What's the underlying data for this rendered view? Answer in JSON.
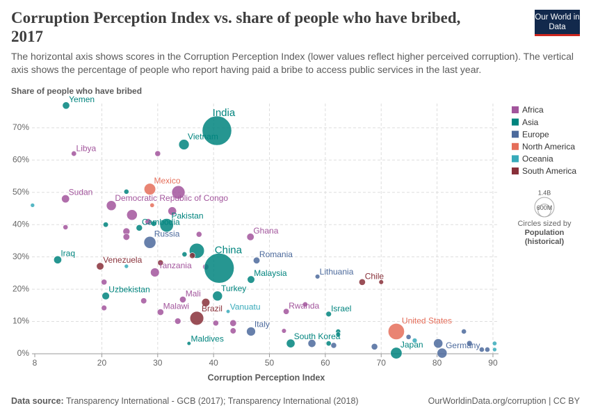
{
  "chart_data": {
    "type": "scatter",
    "title": "Corruption Perception Index vs. share of people who have bribed, 2017",
    "subtitle": "The horizontal axis shows scores in the Corruption Perception Index (lower values reflect higher perceived corruption). The vertical axis shows the percentage of people who report having paid a bribe to access public services in the last year.",
    "logo": "Our World in Data",
    "y_label": "Share of people who have bribed",
    "x_label": "Corruption Perception Index",
    "source_label": "Data source:",
    "source": "Transparency International - GCB (2017); Transparency International (2018)",
    "url": "OurWorldinData.org/corruption | CC BY",
    "xlim": [
      7.5,
      91
    ],
    "ylim": [
      0,
      77.5
    ],
    "xticks": [
      8,
      20,
      30,
      40,
      50,
      60,
      70,
      80,
      90
    ],
    "yticks": [
      {
        "value": 0,
        "label": "0%"
      },
      {
        "value": 10,
        "label": "10%"
      },
      {
        "value": 20,
        "label": "20%"
      },
      {
        "value": 30,
        "label": "30%"
      },
      {
        "value": 40,
        "label": "40%"
      },
      {
        "value": 50,
        "label": "50%"
      },
      {
        "value": 60,
        "label": "60%"
      },
      {
        "value": 70,
        "label": "70%"
      }
    ],
    "grid": true,
    "size_title": "Circles sized by",
    "size_variable": "Population",
    "size_note": "(historical)",
    "size_legend": [
      {
        "value": 1400,
        "label": "1.4B"
      },
      {
        "value": 600,
        "label": "600M"
      }
    ],
    "series": [
      {
        "name": "Africa",
        "color": "#a2559c",
        "x": [
          15,
          13.5,
          21.7,
          46.6,
          29.5,
          34.5,
          30.5,
          53,
          33.7,
          32.6,
          25.4,
          24.4,
          24.4,
          30.0,
          13.5,
          20.4,
          20.4,
          27.5,
          28.3,
          37.4,
          38.6,
          43.5,
          43.5,
          40.4,
          33.6,
          52.6,
          56.4
        ],
        "values": [
          62,
          48,
          45.9,
          36.2,
          25.2,
          16.8,
          12.9,
          13.1,
          50,
          44.2,
          43,
          37.9,
          36.2,
          62,
          39.2,
          22.2,
          14.2,
          16.4,
          40.9,
          37,
          26.9,
          9.5,
          7.1,
          9.5,
          10.1,
          7.1,
          15.3
        ],
        "sizes": [
          6,
          40,
          81,
          29,
          57,
          18,
          18,
          12,
          190,
          50,
          100,
          25,
          20,
          10,
          5,
          10,
          8,
          12,
          15,
          10,
          14,
          20,
          12,
          10,
          15,
          3,
          5
        ],
        "labels": [
          "Libya",
          "Sudan",
          "Democratic Republic of Congo",
          "Ghana",
          "Tanzania",
          "Mali",
          "Malawi",
          "Rwanda",
          null,
          null,
          null,
          null,
          null,
          null,
          null,
          null,
          null,
          null,
          null,
          null,
          null,
          null,
          null,
          null,
          null,
          null,
          null
        ]
      },
      {
        "name": "Asia",
        "color": "#00847e",
        "x": [
          13.6,
          40.6,
          34.7,
          31.6,
          26.7,
          41,
          12.1,
          20.7,
          40.7,
          46.7,
          60.6,
          53.8,
          72.7,
          35.6,
          37,
          24.4,
          20.7,
          29.3,
          34.8,
          62.3,
          62.3,
          60.6
        ],
        "values": [
          76.9,
          69.1,
          64.8,
          39.8,
          39,
          26.5,
          29.1,
          17.9,
          17.9,
          23,
          12.3,
          3.2,
          0.2,
          3.2,
          31.9,
          50.2,
          40,
          40.3,
          30.8,
          6.9,
          6,
          3.2
        ],
        "sizes": [
          28,
          1340,
          95,
          200,
          16,
          1390,
          38,
          32,
          80,
          31,
          8,
          51,
          127,
          0.4,
          264,
          5,
          6,
          7,
          5,
          4,
          3,
          5
        ],
        "labels": [
          "Yemen",
          "India",
          "Vietnam",
          "Pakistan",
          "Cambodia",
          "China",
          "Iraq",
          "Uzbekistan",
          "Turkey",
          "Malaysia",
          "Israel",
          "South Korea",
          "Japan",
          "Maldives",
          null,
          null,
          null,
          null,
          null,
          null,
          null,
          null
        ]
      },
      {
        "name": "Europe",
        "color": "#4c6a9c",
        "x": [
          28.6,
          47.7,
          58.6,
          46.7,
          80.9,
          68.8,
          57.6,
          61.5,
          74.9,
          84.8,
          85.8,
          88,
          89,
          80.2
        ],
        "values": [
          34.5,
          28.9,
          23.9,
          6.9,
          0.2,
          2.2,
          3.2,
          2.6,
          5.2,
          6.9,
          3.2,
          1.3,
          1.3,
          3.2
        ],
        "sizes": [
          144,
          20,
          3,
          60,
          82,
          17,
          38,
          10,
          5,
          5,
          9,
          5,
          5,
          66
        ],
        "labels": [
          "Russia",
          "Romania",
          "Lithuania",
          "Italy",
          "Germany",
          null,
          null,
          null,
          null,
          null,
          null,
          null,
          null,
          null
        ]
      },
      {
        "name": "North America",
        "color": "#e56e5a",
        "x": [
          28.6,
          72.7,
          29.0
        ],
        "values": [
          51,
          6.9,
          46
        ],
        "sizes": [
          129,
          325,
          2
        ],
        "labels": [
          "Mexico",
          "United States",
          null
        ]
      },
      {
        "name": "Oceania",
        "color": "#38aaba",
        "x": [
          42.6,
          7.6,
          24.4,
          76,
          90.3,
          90.3
        ],
        "values": [
          13.1,
          46,
          27.1,
          4.1,
          3.2,
          1.3
        ],
        "sizes": [
          0.3,
          1,
          1,
          4,
          2,
          1
        ],
        "labels": [
          "Vanuatu",
          null,
          null,
          null,
          null,
          null
        ]
      },
      {
        "name": "South America",
        "color": "#883039",
        "x": [
          19.7,
          37,
          66.6,
          38.6,
          30.5,
          36.2,
          70
        ],
        "values": [
          27.1,
          11,
          22.2,
          15.9,
          28.2,
          30.4,
          22.2
        ],
        "sizes": [
          30,
          209,
          18,
          44,
          10,
          11,
          3
        ],
        "labels": [
          "Venezuela",
          "Brazil",
          "Chile",
          null,
          null,
          null,
          null
        ]
      }
    ]
  }
}
